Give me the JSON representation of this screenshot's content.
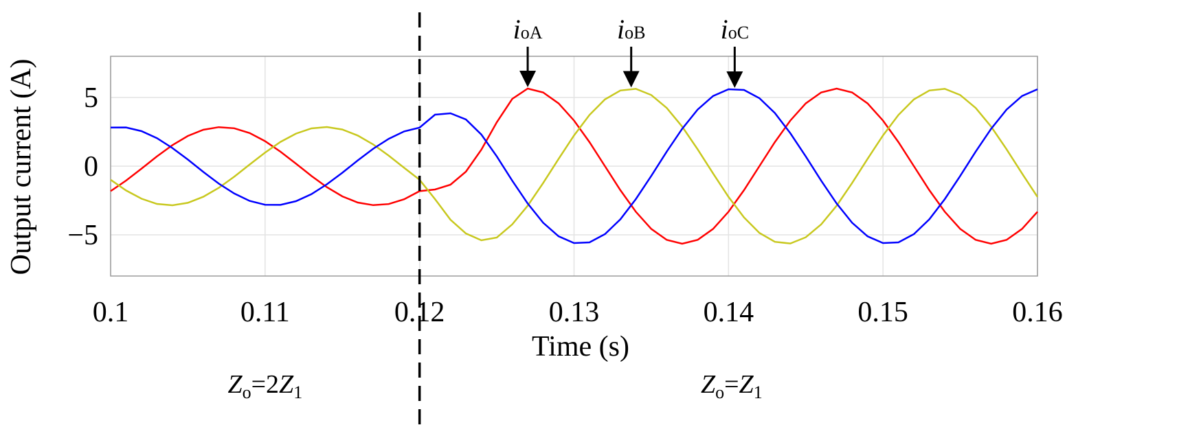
{
  "chart_data": {
    "type": "line",
    "xlabel": "Time (s)",
    "ylabel": "Output current (A)",
    "xlim": [
      0.1,
      0.16
    ],
    "ylim": [
      -8,
      8
    ],
    "xticks": [
      0.1,
      0.11,
      0.12,
      0.13,
      0.14,
      0.15,
      0.16
    ],
    "yticks": [
      {
        "value": -5,
        "label": "−5"
      },
      0,
      5
    ],
    "grid": true,
    "vline": 0.12,
    "x": [
      0.1,
      0.101,
      0.102,
      0.103,
      0.104,
      0.105,
      0.106,
      0.107,
      0.108,
      0.109,
      0.11,
      0.111,
      0.112,
      0.113,
      0.114,
      0.115,
      0.116,
      0.117,
      0.118,
      0.119,
      0.12,
      0.121,
      0.122,
      0.123,
      0.124,
      0.125,
      0.126,
      0.127,
      0.128,
      0.129,
      0.13,
      0.131,
      0.132,
      0.133,
      0.134,
      0.135,
      0.136,
      0.137,
      0.138,
      0.139,
      0.14,
      0.141,
      0.142,
      0.143,
      0.144,
      0.145,
      0.146,
      0.147,
      0.148,
      0.149,
      0.15,
      0.151,
      0.152,
      0.153,
      0.154,
      0.155,
      0.156,
      0.157,
      0.158,
      0.159,
      0.16
    ],
    "series": [
      {
        "name": "ioA",
        "color": "#ff0000",
        "values": [
          -1.82,
          -1.05,
          -0.18,
          0.71,
          1.53,
          2.2,
          2.65,
          2.84,
          2.76,
          2.41,
          1.82,
          1.05,
          0.18,
          -0.71,
          -1.53,
          -2.2,
          -2.65,
          -2.84,
          -2.76,
          -2.41,
          -1.82,
          -1.7,
          -1.35,
          -0.4,
          1.2,
          3.2,
          4.9,
          5.65,
          5.37,
          4.57,
          3.32,
          1.75,
          0,
          -1.75,
          -3.32,
          -4.57,
          -5.37,
          -5.65,
          -5.37,
          -4.57,
          -3.32,
          -1.75,
          0,
          1.75,
          3.32,
          4.57,
          5.37,
          5.65,
          5.37,
          4.57,
          3.32,
          1.75,
          0,
          -1.75,
          -3.32,
          -4.57,
          -5.37,
          -5.65,
          -5.37,
          -4.57,
          -3.32
        ]
      },
      {
        "name": "ioB",
        "color": "#c8c81e",
        "values": [
          -0.99,
          -1.77,
          -2.37,
          -2.75,
          -2.85,
          -2.67,
          -2.23,
          -1.58,
          -0.77,
          0.12,
          0.99,
          1.77,
          2.37,
          2.75,
          2.85,
          2.67,
          2.23,
          1.58,
          0.77,
          -0.12,
          -0.99,
          -2.4,
          -3.9,
          -4.9,
          -5.4,
          -5.2,
          -4.24,
          -2.88,
          -1.23,
          0.53,
          2.24,
          3.73,
          4.86,
          5.51,
          5.63,
          5.18,
          4.24,
          2.88,
          1.23,
          -0.53,
          -2.24,
          -3.73,
          -4.86,
          -5.51,
          -5.63,
          -5.18,
          -4.24,
          -2.88,
          -1.23,
          0.53,
          2.24,
          3.73,
          4.86,
          5.51,
          5.63,
          5.18,
          4.24,
          2.88,
          1.23,
          -0.53,
          -2.24
        ]
      },
      {
        "name": "ioC",
        "color": "#0000ff",
        "values": [
          2.81,
          2.82,
          2.55,
          2.04,
          1.32,
          0.48,
          -0.42,
          -1.27,
          -1.99,
          -2.53,
          -2.81,
          -2.82,
          -2.55,
          -2.04,
          -1.32,
          -0.48,
          0.42,
          1.27,
          1.99,
          2.53,
          2.81,
          3.75,
          3.85,
          3.4,
          2.3,
          0.71,
          -1.06,
          -2.72,
          -4.12,
          -5.11,
          -5.6,
          -5.55,
          -4.95,
          -3.87,
          -2.4,
          -0.71,
          1.06,
          2.72,
          4.12,
          5.11,
          5.6,
          5.55,
          4.95,
          3.87,
          2.4,
          0.71,
          -1.06,
          -2.72,
          -4.12,
          -5.11,
          -5.6,
          -5.55,
          -4.95,
          -3.87,
          -2.4,
          -0.71,
          1.06,
          2.72,
          4.12,
          5.11,
          5.6
        ]
      }
    ],
    "annotations": [
      {
        "x": 0.127,
        "y": 5.65,
        "main": "i",
        "sub": "oA"
      },
      {
        "x": 0.1337,
        "y": 5.63,
        "main": "i",
        "sub": "oB"
      },
      {
        "x": 0.1404,
        "y": 5.6,
        "main": "i",
        "sub": "oC"
      }
    ],
    "regions": [
      {
        "x": 0.11,
        "parts": [
          {
            "text": "Z",
            "style": "italic"
          },
          {
            "text": "o",
            "style": "sub"
          },
          {
            "text": "=2",
            "style": "normal"
          },
          {
            "text": "Z",
            "style": "italic"
          },
          {
            "text": "1",
            "style": "sub"
          }
        ]
      },
      {
        "x": 0.1402,
        "parts": [
          {
            "text": "Z",
            "style": "italic"
          },
          {
            "text": "o",
            "style": "sub"
          },
          {
            "text": "=",
            "style": "normal"
          },
          {
            "text": "Z",
            "style": "italic"
          },
          {
            "text": "1",
            "style": "sub"
          }
        ]
      }
    ]
  }
}
